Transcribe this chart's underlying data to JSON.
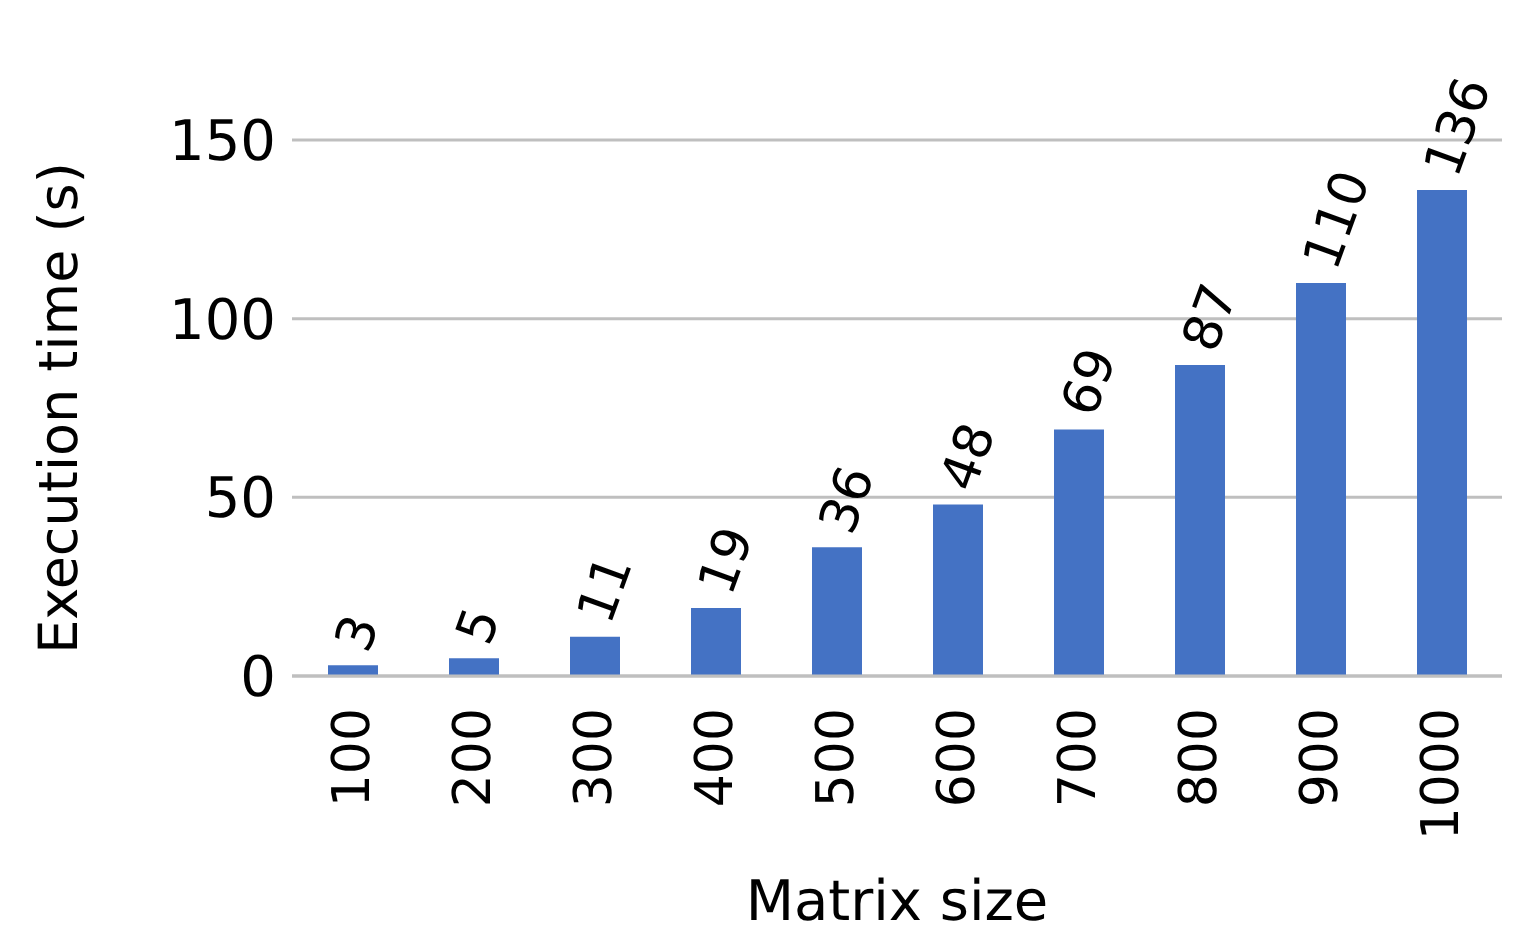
{
  "chart_data": {
    "type": "bar",
    "xlabel": "Matrix size",
    "ylabel": "Execution time (s)",
    "categories": [
      "100",
      "200",
      "300",
      "400",
      "500",
      "600",
      "700",
      "800",
      "900",
      "1000"
    ],
    "values": [
      3,
      5,
      11,
      19,
      36,
      48,
      69,
      87,
      110,
      136
    ],
    "color": "#4472c4",
    "ylim": [
      0,
      150
    ],
    "yticks": [
      0,
      50,
      100,
      150
    ],
    "grid": "y",
    "data_labels": true
  }
}
